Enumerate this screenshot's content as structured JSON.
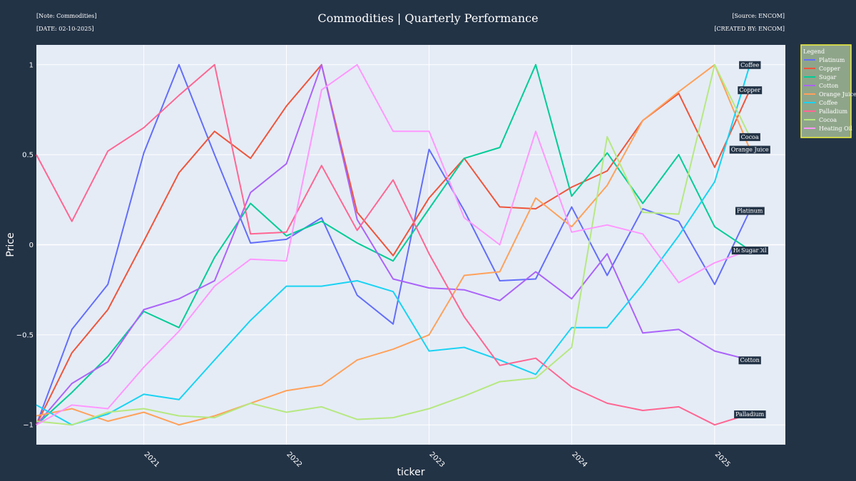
{
  "header": {
    "note": "[Note: Commodities]",
    "date": "[DATE: 02-10-2025]",
    "source": "[Source: ENCOM]",
    "created_by": "[CREATED BY: ENCOM]"
  },
  "colors": {
    "page_bg": "#233346",
    "plot_bg": "#e5ecf6",
    "legend_bg": "#8fa58a",
    "legend_border": "#f2f23a"
  },
  "chart_data": {
    "type": "line",
    "title": "Commodities | Quarterly Performance",
    "xlabel": "ticker",
    "ylabel": "Price",
    "x_start": "2020-04-01",
    "x_step_months": 3,
    "x_ticks": [
      "2021",
      "2022",
      "2023",
      "2024",
      "2025"
    ],
    "xlim": [
      "2020-04-01",
      "2025-07-01"
    ],
    "ylim": [
      -1.11,
      1.11
    ],
    "y_ticks": [
      -1,
      -0.5,
      0,
      0.5,
      1
    ],
    "y_tick_labels": [
      "−1",
      "−0.5",
      "0",
      "0.5",
      "1"
    ],
    "grid": true,
    "legend_title": "Legend",
    "legend_position": "right",
    "series": [
      {
        "name": "Platinum",
        "color": "#636efa",
        "values": [
          -1,
          -0.47,
          -0.22,
          0.51,
          1,
          0.5,
          0.01,
          0.03,
          0.15,
          -0.28,
          -0.44,
          0.53,
          0.19,
          -0.2,
          -0.19,
          0.21,
          -0.17,
          0.2,
          0.13,
          -0.22,
          0.19
        ]
      },
      {
        "name": "Copper",
        "color": "#ef553b",
        "values": [
          -1,
          -0.6,
          -0.36,
          0.02,
          0.4,
          0.63,
          0.48,
          0.77,
          1,
          0.18,
          -0.06,
          0.26,
          0.48,
          0.21,
          0.2,
          0.32,
          0.41,
          0.69,
          0.84,
          0.43,
          0.86
        ]
      },
      {
        "name": "Sugar",
        "color": "#00cc96",
        "values": [
          -1,
          -0.82,
          -0.62,
          -0.37,
          -0.46,
          -0.07,
          0.23,
          0.05,
          0.13,
          0.01,
          -0.09,
          0.2,
          0.48,
          0.54,
          1,
          0.27,
          0.51,
          0.23,
          0.5,
          0.1,
          -0.03
        ]
      },
      {
        "name": "Cotton",
        "color": "#ab63fa",
        "values": [
          -1,
          -0.77,
          -0.65,
          -0.36,
          -0.3,
          -0.2,
          0.29,
          0.45,
          1,
          0.14,
          -0.19,
          -0.24,
          -0.25,
          -0.31,
          -0.15,
          -0.3,
          -0.05,
          -0.49,
          -0.47,
          -0.59,
          -0.64
        ]
      },
      {
        "name": "Orange Juice",
        "color": "#ffa15a",
        "values": [
          -0.95,
          -0.91,
          -0.98,
          -0.93,
          -1,
          -0.95,
          -0.88,
          -0.81,
          -0.78,
          -0.64,
          -0.58,
          -0.5,
          -0.17,
          -0.15,
          0.26,
          0.1,
          0.33,
          0.69,
          0.85,
          1,
          0.53
        ]
      },
      {
        "name": "Coffee",
        "color": "#19d3f3",
        "values": [
          -0.89,
          -1,
          -0.94,
          -0.83,
          -0.86,
          -0.64,
          -0.42,
          -0.23,
          -0.23,
          -0.2,
          -0.26,
          -0.59,
          -0.57,
          -0.64,
          -0.72,
          -0.46,
          -0.46,
          -0.22,
          0.05,
          0.35,
          1
        ]
      },
      {
        "name": "Palladium",
        "color": "#ff6692",
        "values": [
          0.5,
          0.13,
          0.52,
          0.65,
          0.83,
          1,
          0.06,
          0.07,
          0.44,
          0.08,
          0.36,
          -0.05,
          -0.4,
          -0.67,
          -0.63,
          -0.79,
          -0.88,
          -0.92,
          -0.9,
          -1,
          -0.94
        ]
      },
      {
        "name": "Cocoa",
        "color": "#b6e880",
        "values": [
          -0.98,
          -1,
          -0.93,
          -0.91,
          -0.95,
          -0.96,
          -0.88,
          -0.93,
          -0.9,
          -0.97,
          -0.96,
          -0.91,
          -0.84,
          -0.76,
          -0.74,
          -0.57,
          0.6,
          0.18,
          0.17,
          1,
          0.6
        ]
      },
      {
        "name": "Heating Oil",
        "color": "#ff97ff",
        "values": [
          -1,
          -0.89,
          -0.91,
          -0.68,
          -0.48,
          -0.23,
          -0.08,
          -0.09,
          0.86,
          1,
          0.63,
          0.63,
          0.15,
          0.0,
          0.63,
          0.07,
          0.11,
          0.06,
          -0.21,
          -0.1,
          -0.03
        ]
      }
    ],
    "end_labels": [
      {
        "text": "Coffee",
        "series": "Coffee"
      },
      {
        "text": "Copper",
        "series": "Copper"
      },
      {
        "text": "Cocoa",
        "series": "Cocoa"
      },
      {
        "text": "Orange Juice",
        "series": "Orange Juice"
      },
      {
        "text": "Platinum",
        "series": "Platinum"
      },
      {
        "text": "Heating Oil",
        "series": "Heating Oil"
      },
      {
        "text": "Sugar",
        "series": "Sugar"
      },
      {
        "text": "Cotton",
        "series": "Cotton"
      },
      {
        "text": "Palladium",
        "series": "Palladium"
      }
    ]
  }
}
